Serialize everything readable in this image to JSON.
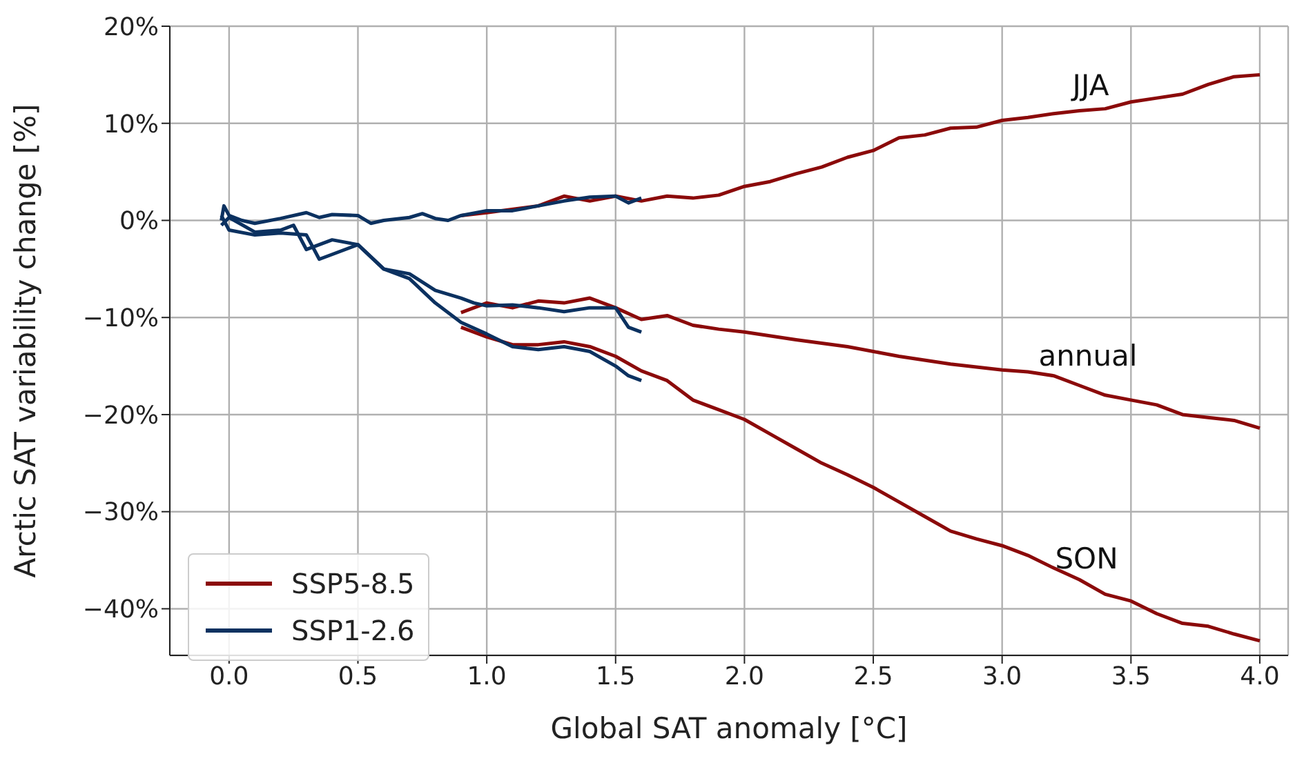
{
  "chart_data": {
    "type": "line",
    "xlabel": "Global SAT anomaly [°C]",
    "ylabel": "Arctic SAT variability change [%]",
    "xlim": [
      -0.23,
      4.11
    ],
    "ylim": [
      -44.8,
      20
    ],
    "xticks": [
      {
        "value": 0,
        "label": "0.0"
      },
      {
        "value": 0.5,
        "label": "0.5"
      },
      {
        "value": 1,
        "label": "1.0"
      },
      {
        "value": 1.5,
        "label": "1.5"
      },
      {
        "value": 2,
        "label": "2.0"
      },
      {
        "value": 2.5,
        "label": "2.5"
      },
      {
        "value": 3,
        "label": "3.0"
      },
      {
        "value": 3.5,
        "label": "3.5"
      },
      {
        "value": 4,
        "label": "4.0"
      }
    ],
    "yticks": [
      {
        "value": -40,
        "label": "−40%"
      },
      {
        "value": -30,
        "label": "−30%"
      },
      {
        "value": -20,
        "label": "−20%"
      },
      {
        "value": -10,
        "label": "−10%"
      },
      {
        "value": 0,
        "label": "0%"
      },
      {
        "value": 10,
        "label": "10%"
      },
      {
        "value": 20,
        "label": "20%"
      }
    ],
    "grid": true,
    "legend": "bottom left",
    "line_style": "solid",
    "marker": "none",
    "annotations": [
      "JJA",
      "annual",
      "SON"
    ],
    "series": [
      {
        "name": "SSP5-8.5",
        "color": "#8b0a0a",
        "x": [
          0.9,
          1.0,
          1.2,
          1.3,
          1.4,
          1.5,
          1.6,
          1.7,
          1.8,
          1.9,
          2.0,
          2.1,
          2.2,
          2.3,
          2.4,
          2.5,
          2.6,
          2.7,
          2.8,
          2.9,
          3.0,
          3.1,
          3.2,
          3.3,
          3.4,
          3.5,
          3.6,
          3.7,
          3.8,
          3.9,
          4.0
        ],
        "values": [
          0.5,
          0.8,
          1.5,
          2.5,
          2.0,
          2.5,
          2.0,
          2.5,
          2.3,
          2.6,
          3.5,
          4.0,
          4.8,
          5.5,
          6.5,
          7.2,
          8.5,
          8.8,
          9.5,
          9.6,
          10.3,
          10.6,
          11.0,
          11.3,
          11.5,
          12.2,
          12.6,
          13.0,
          14.0,
          14.8,
          15.0
        ]
      },
      {
        "color": "#8b0a0a",
        "x": [
          0.9,
          1.0,
          1.1,
          1.2,
          1.3,
          1.4,
          1.5,
          1.6,
          1.7,
          1.8,
          1.9,
          2.0,
          2.2,
          2.4,
          2.5,
          2.6,
          2.8,
          3.0,
          3.1,
          3.2,
          3.3,
          3.4,
          3.5,
          3.6,
          3.7,
          3.8,
          3.9,
          4.0
        ],
        "values": [
          -9.5,
          -8.5,
          -9.0,
          -8.3,
          -8.5,
          -8.0,
          -9.0,
          -10.2,
          -9.8,
          -10.8,
          -11.2,
          -11.5,
          -12.3,
          -13.0,
          -13.5,
          -14.0,
          -14.8,
          -15.4,
          -15.6,
          -16.0,
          -17.0,
          -18.0,
          -18.5,
          -19.0,
          -20.0,
          -20.3,
          -20.6,
          -21.4
        ]
      },
      {
        "color": "#8b0a0a",
        "x": [
          0.9,
          1.0,
          1.1,
          1.2,
          1.3,
          1.4,
          1.5,
          1.6,
          1.7,
          1.8,
          1.9,
          2.0,
          2.1,
          2.2,
          2.3,
          2.4,
          2.5,
          2.6,
          2.7,
          2.8,
          2.9,
          3.0,
          3.1,
          3.2,
          3.3,
          3.4,
          3.5,
          3.6,
          3.7,
          3.8,
          3.9,
          4.0
        ],
        "values": [
          -11.0,
          -12.0,
          -12.8,
          -12.8,
          -12.5,
          -13.0,
          -14.0,
          -15.5,
          -16.5,
          -18.5,
          -19.5,
          -20.5,
          -22.0,
          -23.5,
          -25.0,
          -26.2,
          -27.5,
          -29.0,
          -30.5,
          -32.0,
          -32.8,
          -33.5,
          -34.5,
          -35.8,
          -37.0,
          -38.5,
          -39.2,
          -40.5,
          -41.5,
          -41.8,
          -42.6,
          -43.3
        ]
      },
      {
        "name": "SSP1-2.6",
        "color": "#0b3160",
        "x": [
          -0.03,
          -0.02,
          0.0,
          0.05,
          0.1,
          0.2,
          0.3,
          0.35,
          0.4,
          0.5,
          0.55,
          0.6,
          0.7,
          0.75,
          0.8,
          0.85,
          0.9,
          1.0,
          1.1,
          1.2,
          1.3,
          1.4,
          1.5,
          1.55,
          1.6
        ],
        "values": [
          0,
          1.5,
          0.5,
          0,
          -0.3,
          0.2,
          0.8,
          0.3,
          0.6,
          0.5,
          -0.3,
          0,
          0.3,
          0.7,
          0.2,
          0,
          0.5,
          1.0,
          1.0,
          1.5,
          2.0,
          2.4,
          2.5,
          1.8,
          2.3
        ]
      },
      {
        "color": "#0b3160",
        "x": [
          -0.03,
          0.0,
          0.1,
          0.2,
          0.25,
          0.3,
          0.35,
          0.4,
          0.5,
          0.6,
          0.7,
          0.8,
          0.9,
          0.95,
          1.0,
          1.1,
          1.2,
          1.3,
          1.4,
          1.5,
          1.55,
          1.6
        ],
        "values": [
          -0.5,
          0.3,
          -1.2,
          -1.0,
          -0.5,
          -3.0,
          -2.5,
          -2.0,
          -2.5,
          -5.0,
          -5.5,
          -7.2,
          -8.0,
          -8.5,
          -8.8,
          -8.7,
          -9.0,
          -9.4,
          -9.0,
          -9.0,
          -11.0,
          -11.5
        ]
      },
      {
        "color": "#0b3160",
        "x": [
          -0.03,
          0.0,
          0.1,
          0.2,
          0.3,
          0.35,
          0.4,
          0.5,
          0.6,
          0.7,
          0.8,
          0.9,
          1.0,
          1.1,
          1.2,
          1.3,
          1.4,
          1.5,
          1.55,
          1.6
        ],
        "values": [
          0.5,
          -1.0,
          -1.5,
          -1.3,
          -1.5,
          -4.0,
          -3.5,
          -2.5,
          -5.0,
          -6.0,
          -8.5,
          -10.5,
          -11.7,
          -13.0,
          -13.3,
          -13.0,
          -13.5,
          -15.0,
          -16.0,
          -16.5
        ]
      }
    ]
  }
}
